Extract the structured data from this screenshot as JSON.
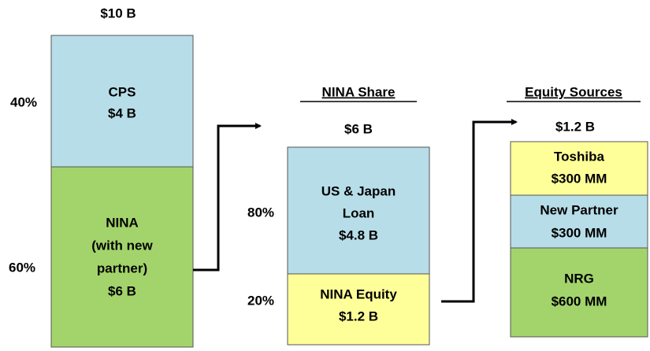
{
  "blocks": [
    {
      "total": "$10 B",
      "segments": [
        {
          "percent": "40%",
          "lines": [
            "CPS",
            "$4 B"
          ]
        },
        {
          "percent": "60%",
          "lines": [
            "NINA",
            "(with new",
            "partner)",
            "$6 B"
          ]
        }
      ]
    },
    {
      "title": "NINA Share",
      "total": "$6 B",
      "segments": [
        {
          "percent": "80%",
          "lines": [
            "US & Japan",
            "Loan",
            "$4.8 B"
          ]
        },
        {
          "percent": "20%",
          "lines": [
            "NINA Equity",
            "$1.2 B"
          ]
        }
      ]
    },
    {
      "title": "Equity Sources",
      "total": "$1.2 B",
      "segments": [
        {
          "lines": [
            "Toshiba",
            "$300 MM"
          ]
        },
        {
          "lines": [
            "New Partner",
            "$300 MM"
          ]
        },
        {
          "lines": [
            "NRG",
            "$600 MM"
          ]
        }
      ]
    }
  ]
}
